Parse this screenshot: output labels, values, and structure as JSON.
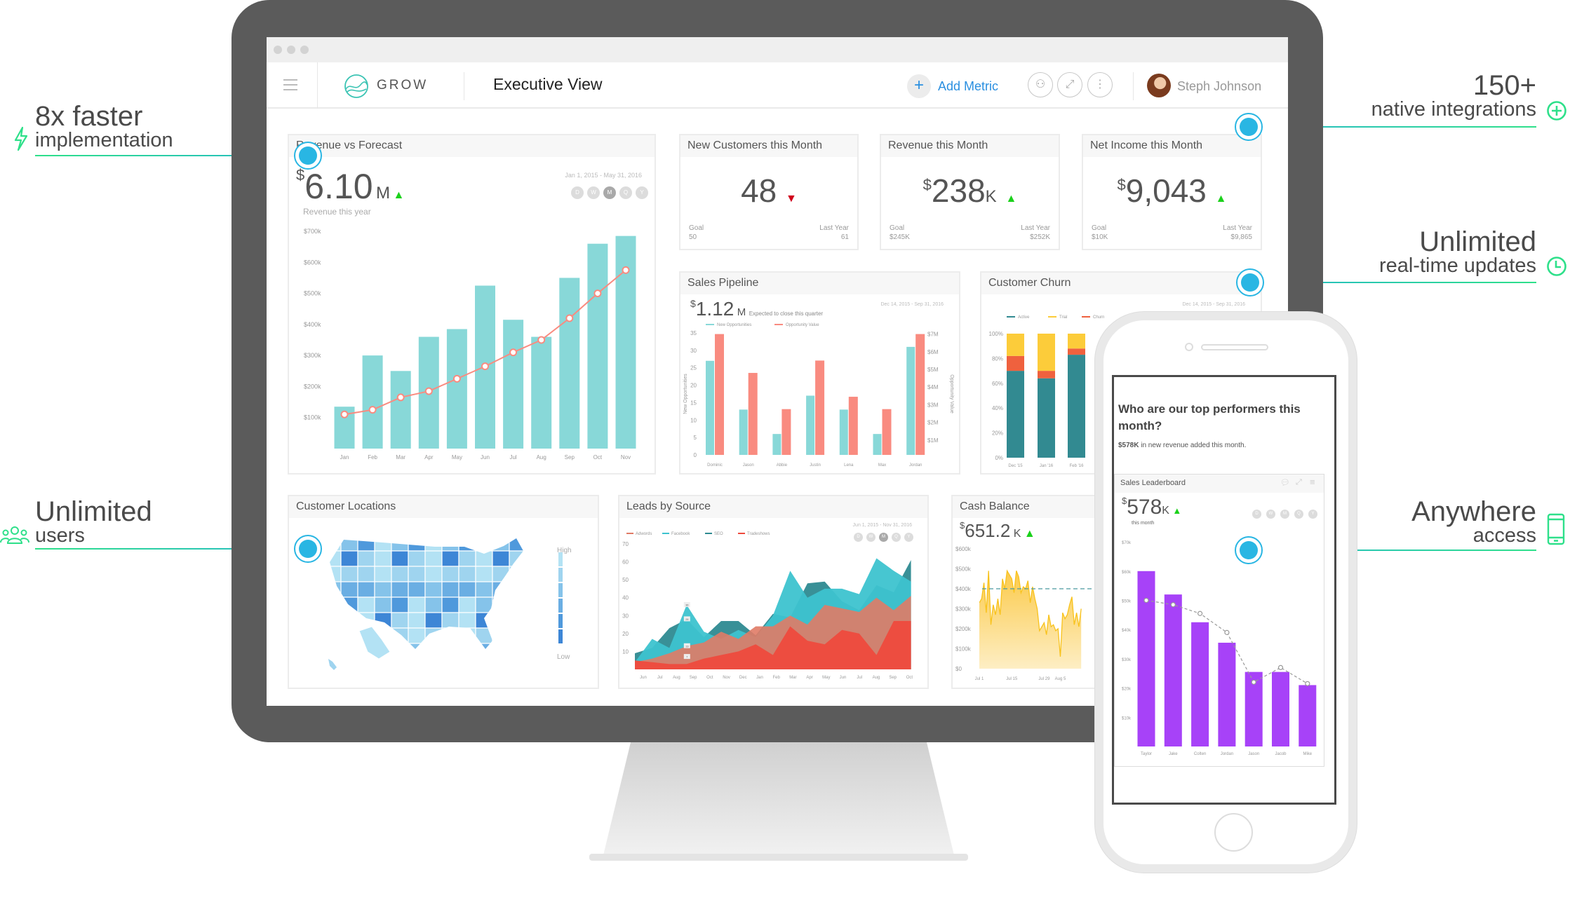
{
  "callouts": {
    "faster": {
      "big": "8x faster",
      "small": "implementation",
      "icon": "lightning-icon"
    },
    "users": {
      "big": "Unlimited",
      "small": "users",
      "icon": "users-icon"
    },
    "integrations": {
      "big": "150+",
      "small": "native integrations",
      "icon": "plus-circle-icon"
    },
    "updates": {
      "big": "Unlimited",
      "small": "real-time updates",
      "icon": "clock-icon"
    },
    "access": {
      "big": "Anywhere",
      "small": "access",
      "icon": "mobile-icon"
    },
    "accent": "#29b6e3",
    "green": "#2ee08a"
  },
  "header": {
    "logo": "GROW",
    "title": "Executive View",
    "add_metric": "Add Metric",
    "user_name": "Steph Johnson",
    "accent": "#2a8fe0"
  },
  "periods": [
    "D",
    "W",
    "M",
    "Q",
    "Y"
  ],
  "kpis": {
    "revenue_forecast": {
      "title": "Revenue vs Forecast",
      "currency": "$",
      "value": "6.10",
      "unit": "M",
      "subtitle": "Revenue this year",
      "date_range": "Jan 1, 2015 - May 31, 2016",
      "trend": "up"
    },
    "new_customers": {
      "title": "New Customers this Month",
      "value": "48",
      "trend": "down",
      "goal_label": "Goal",
      "goal": "50",
      "last_year_label": "Last Year",
      "last_year": "61"
    },
    "revenue_month": {
      "title": "Revenue this Month",
      "currency": "$",
      "value": "238",
      "unit": "K",
      "trend": "up",
      "goal_label": "Goal",
      "goal": "$245K",
      "last_year_label": "Last Year",
      "last_year": "$252K"
    },
    "net_income": {
      "title": "Net Income this Month",
      "currency": "$",
      "value": "9,043",
      "trend": "up",
      "goal_label": "Goal",
      "goal": "$10K",
      "last_year_label": "Last Year",
      "last_year": "$9,865"
    },
    "pipeline": {
      "title": "Sales Pipeline",
      "currency": "$",
      "value": "1.12",
      "unit": "M",
      "note": "Expected to close this quarter",
      "date_range": "Dec 14, 2015 - Sep 31, 2016"
    },
    "churn": {
      "title": "Customer Churn",
      "date_range": "Dec 14, 2015 - Sep 31, 2016"
    },
    "locations": {
      "title": "Customer Locations",
      "legend_high": "High",
      "legend_low": "Low"
    },
    "leads": {
      "title": "Leads by Source",
      "date_range": "Jun 1, 2015 - Nov 31, 2016"
    },
    "cash": {
      "title": "Cash Balance",
      "currency": "$",
      "value": "651.2",
      "unit": "K",
      "trend": "up"
    }
  },
  "phone": {
    "question": "Who are our top performers this month?",
    "summary_bold": "$578K",
    "summary_rest": " in new revenue added this month.",
    "card_title": "Sales Leaderboard",
    "currency": "$",
    "value": "578",
    "unit": "K",
    "subtitle": "this month"
  },
  "chart_data": [
    {
      "id": "revenue",
      "type": "bar",
      "categories": [
        "Jan",
        "Feb",
        "Mar",
        "Apr",
        "May",
        "Jun",
        "Jul",
        "Aug",
        "Sep",
        "Oct",
        "Nov"
      ],
      "series": [
        {
          "values": [
            135000,
            300000,
            250000,
            360000,
            385000,
            525000,
            415000,
            360000,
            550000,
            660000,
            685000
          ],
          "color": "#88d8d8"
        },
        {
          "values": [
            110000,
            125000,
            165000,
            185000,
            225000,
            265000,
            310000,
            350000,
            420000,
            500000,
            575000
          ],
          "color": "#f98b80"
        }
      ],
      "yticks": [
        "$100k",
        "$200k",
        "$300k",
        "$400k",
        "$500k",
        "$600k",
        "$700k"
      ],
      "ylim": [
        0,
        700000
      ]
    },
    {
      "id": "pipeline",
      "type": "bar",
      "categories": [
        "Dominic",
        "Jason",
        "Abbie",
        "Justin",
        "Lena",
        "Max",
        "Jordan"
      ],
      "series": [
        {
          "name": "New Opportunities",
          "values": [
            27,
            13,
            6,
            17,
            13,
            6,
            31
          ],
          "color": "#88d8d8"
        },
        {
          "name": "Opportunity Value",
          "values": [
            7000000,
            4800000,
            2750000,
            5500000,
            3450000,
            2750000,
            7000000
          ],
          "color": "#f98b80"
        }
      ],
      "yticks": [
        "0",
        "5",
        "10",
        "15",
        "20",
        "25",
        "30",
        "35"
      ],
      "y2ticks": [
        "$1M",
        "$2M",
        "$3M",
        "$4M",
        "$5M",
        "$6M",
        "$7M"
      ],
      "ylabel": "New Opportunities",
      "y2label": "Opportunity Value",
      "ylim": [
        0,
        35
      ],
      "y2lim": [
        0,
        7000000
      ]
    },
    {
      "id": "churn",
      "type": "bar",
      "stacked": true,
      "categories": [
        "Dec '15",
        "Jan '16",
        "Feb '16"
      ],
      "series": [
        {
          "name": "Active",
          "values": [
            70,
            64,
            83
          ],
          "color": "#328a91"
        },
        {
          "name": "Churn",
          "values": [
            12,
            6,
            5
          ],
          "color": "#ef613e"
        },
        {
          "name": "Trial",
          "values": [
            18,
            30,
            12
          ],
          "color": "#fccc3a"
        }
      ],
      "legend_order": [
        "Active",
        "Trial",
        "Churn"
      ],
      "yticks": [
        "0%",
        "20%",
        "40%",
        "60%",
        "80%",
        "100%"
      ],
      "ylim": [
        0,
        100
      ]
    },
    {
      "id": "leads",
      "type": "area",
      "categories": [
        "Jun",
        "Jul",
        "Aug",
        "Sep",
        "Oct",
        "Nov",
        "Dec",
        "Jan",
        "Feb",
        "Mar",
        "Apr",
        "May",
        "Jun",
        "Jul",
        "Aug",
        "Sep",
        "Oct"
      ],
      "series": [
        {
          "name": "Adwords",
          "values": [
            4,
            6,
            9,
            13,
            15,
            21,
            17,
            24,
            24,
            30,
            25,
            36,
            34,
            32,
            40,
            33,
            41
          ],
          "color": "#e07b66"
        },
        {
          "name": "Facebook",
          "values": [
            4,
            17,
            12,
            36,
            21,
            17,
            22,
            18,
            30,
            55,
            40,
            45,
            45,
            42,
            62,
            55,
            49
          ],
          "color": "#3dc3cf"
        },
        {
          "name": "SEO",
          "values": [
            9,
            12,
            23,
            28,
            18,
            27,
            27,
            19,
            31,
            29,
            48,
            49,
            38,
            33,
            47,
            43,
            61
          ],
          "color": "#2e8a91"
        },
        {
          "name": "Tradeshows",
          "values": [
            5,
            4,
            3,
            3,
            6,
            8,
            10,
            14,
            8,
            24,
            16,
            14,
            22,
            20,
            8,
            27,
            27
          ],
          "color": "#ee4a3d"
        }
      ],
      "point_labels": [
        "36",
        "28",
        "13",
        "7"
      ],
      "yticks": [
        "10",
        "20",
        "30",
        "40",
        "50",
        "60",
        "70"
      ],
      "ylim": [
        0,
        70
      ]
    },
    {
      "id": "cash",
      "type": "area",
      "xticks": [
        "Jul 1",
        "Jul 15",
        "Jul 29",
        "Aug 5"
      ],
      "values": [
        330000,
        350000,
        430000,
        280000,
        490000,
        220000,
        320000,
        270000,
        350000,
        270000,
        450000,
        400000,
        490000,
        470000,
        450000,
        380000,
        490000,
        460000,
        380000,
        410000,
        400000,
        440000,
        330000,
        410000,
        350000,
        300000,
        190000,
        210000,
        230000,
        170000,
        270000,
        210000,
        220000,
        190000,
        200000,
        60000,
        280000,
        250000,
        270000,
        320000,
        360000,
        220000,
        280000,
        210000,
        300000
      ],
      "reference": 400000,
      "color": "#fcd36a",
      "yticks": [
        "$0",
        "$100k",
        "$200k",
        "$300k",
        "$400k",
        "$500k",
        "$600k"
      ],
      "ylim": [
        0,
        600000
      ]
    },
    {
      "id": "leaderboard",
      "type": "bar",
      "categories": [
        "Taylor",
        "Jake",
        "Colten",
        "Jordan",
        "Jason",
        "Jacob",
        "Mike"
      ],
      "series": [
        {
          "values": [
            60000,
            52000,
            42500,
            35500,
            25500,
            25500,
            21000
          ],
          "color": "#a742f8"
        },
        {
          "values": [
            50000,
            48500,
            45500,
            39000,
            22000,
            27000,
            21500
          ],
          "color": "#999999"
        }
      ],
      "yticks": [
        "$10k",
        "$20k",
        "$30k",
        "$40k",
        "$50k",
        "$60k",
        "$70k"
      ],
      "ylim": [
        0,
        70000
      ]
    }
  ]
}
